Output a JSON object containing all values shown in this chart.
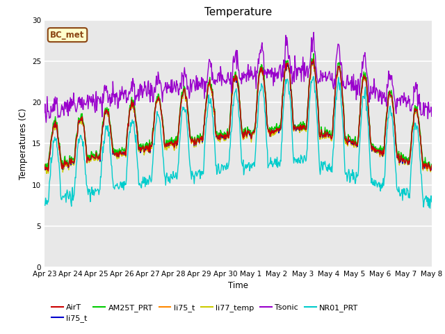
{
  "title": "Temperature",
  "ylabel": "Temperatures (C)",
  "xlabel": "Time",
  "ylim": [
    0,
    30
  ],
  "bg_color": "#e8e8e8",
  "fig_bg": "#ffffff",
  "grid_color": "#ffffff",
  "annotation_text": "BC_met",
  "annotation_bg": "#ffffcc",
  "annotation_border": "#8b4513",
  "series_colors": {
    "AirT": "#cc0000",
    "li75_t_blue": "#0000cc",
    "AM25T_PRT": "#00cc00",
    "li75_t_orange": "#ff8800",
    "li77_temp": "#cccc00",
    "Tsonic": "#9900cc",
    "NR01_PRT": "#00cccc"
  },
  "legend_entries": [
    {
      "label": "AirT",
      "color": "#cc0000"
    },
    {
      "label": "li75_t",
      "color": "#0000cc"
    },
    {
      "label": "AM25T_PRT",
      "color": "#00cc00"
    },
    {
      "label": "li75_t",
      "color": "#ff8800"
    },
    {
      "label": "li77_temp",
      "color": "#cccc00"
    },
    {
      "label": "Tsonic",
      "color": "#9900cc"
    },
    {
      "label": "NR01_PRT",
      "color": "#00cccc"
    }
  ],
  "tick_labels": [
    "Apr 23",
    "Apr 24",
    "Apr 25",
    "Apr 26",
    "Apr 27",
    "Apr 28",
    "Apr 29",
    "Apr 30",
    "May 1",
    "May 2",
    "May 3",
    "May 4",
    "May 5",
    "May 6",
    "May 7",
    "May 8"
  ],
  "tick_positions": [
    0,
    1,
    2,
    3,
    4,
    5,
    6,
    7,
    8,
    9,
    10,
    11,
    12,
    13,
    14,
    15
  ],
  "figsize": [
    6.4,
    4.8
  ],
  "dpi": 100
}
